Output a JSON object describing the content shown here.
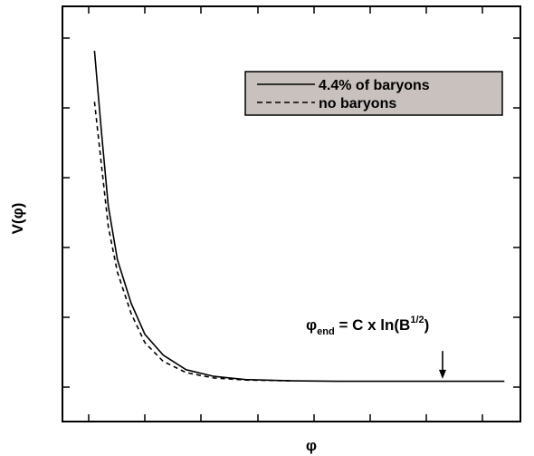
{
  "chart_data": {
    "type": "line",
    "title": "",
    "xlabel": "φ",
    "ylabel": "V(φ)",
    "xlim": [
      0,
      1
    ],
    "ylim": [
      0,
      1
    ],
    "grid": false,
    "legend_position": "top-right",
    "legend_background": "#c8c1bd",
    "series": [
      {
        "name": "4.4% of baryons",
        "style": "solid",
        "color": "#000000",
        "x": [
          0.07,
          0.085,
          0.1,
          0.12,
          0.15,
          0.18,
          0.22,
          0.27,
          0.33,
          0.4,
          0.5,
          0.6,
          0.7,
          0.8,
          0.9,
          0.965
        ],
        "y": [
          0.893,
          0.7,
          0.52,
          0.39,
          0.285,
          0.21,
          0.16,
          0.125,
          0.109,
          0.101,
          0.098,
          0.097,
          0.097,
          0.097,
          0.097,
          0.097
        ]
      },
      {
        "name": "no baryons",
        "style": "dashed",
        "color": "#000000",
        "x": [
          0.07,
          0.085,
          0.1,
          0.12,
          0.15,
          0.18,
          0.22,
          0.27,
          0.33,
          0.4,
          0.5
        ],
        "y": [
          0.77,
          0.62,
          0.47,
          0.36,
          0.26,
          0.19,
          0.145,
          0.118,
          0.105,
          0.1,
          0.098
        ]
      }
    ],
    "annotation": {
      "text": "φ",
      "subscript": "end",
      "rest": " = C x ln(B",
      "superscript": "1/2",
      "close": ")",
      "arrow_x": 0.83,
      "arrow_from_y": 0.17,
      "arrow_to_y": 0.103
    }
  }
}
